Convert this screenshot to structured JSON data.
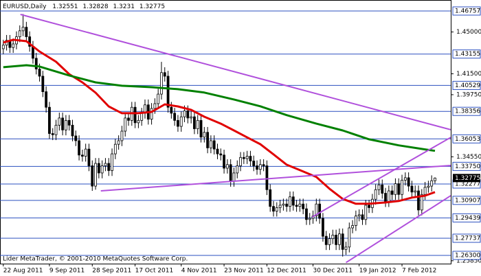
{
  "chart_data": {
    "type": "candlestick",
    "title": "EURUSD,Daily",
    "watermark": "Lider MetaTrader, © 2001-2010 MetaQuotes Software Corp.",
    "categories": [
      "22 Aug 2011",
      null,
      null,
      null,
      null,
      null,
      null,
      null,
      null,
      null,
      null,
      null,
      null,
      null,
      "9 Sep 2011",
      null,
      null,
      null,
      null,
      null,
      null,
      null,
      null,
      null,
      null,
      null,
      null,
      "28 Sep 2011",
      null,
      null,
      null,
      null,
      null,
      null,
      null,
      null,
      null,
      null,
      null,
      null,
      "17 Oct 2011",
      null,
      null,
      null,
      null,
      null,
      null,
      null,
      null,
      null,
      null,
      null,
      null,
      null,
      "4 Nov 2011",
      null,
      null,
      null,
      null,
      null,
      null,
      null,
      null,
      null,
      null,
      null,
      null,
      "23 Nov 2011",
      null,
      null,
      null,
      null,
      null,
      null,
      null,
      null,
      null,
      null,
      null,
      null,
      "12 Dec 2011",
      null,
      null,
      null,
      null,
      null,
      null,
      null,
      null,
      null,
      null,
      null,
      null,
      null,
      "30 Dec 2011",
      null,
      null,
      null,
      null,
      null,
      null,
      null,
      null,
      null,
      null,
      null,
      null,
      null,
      "19 Jan 2012",
      null,
      null,
      null,
      null,
      null,
      null,
      null,
      null,
      null,
      null,
      null,
      null,
      "7 Feb 2012",
      null,
      null,
      null,
      null,
      null,
      null,
      null,
      null,
      null,
      null
    ],
    "open": [
      1.436,
      1.439,
      1.443,
      1.437,
      1.44,
      1.446,
      1.451,
      1.454,
      1.446,
      1.438,
      1.428,
      1.419,
      1.413,
      1.4,
      1.387,
      1.365,
      1.364,
      1.372,
      1.378,
      1.368,
      1.376,
      1.372,
      1.363,
      1.359,
      1.347,
      1.346,
      1.352,
      1.338,
      1.321,
      1.34,
      1.332,
      1.338,
      1.34,
      1.334,
      1.348,
      1.356,
      1.359,
      1.367,
      1.378,
      1.376,
      1.387,
      1.374,
      1.376,
      1.382,
      1.389,
      1.377,
      1.386,
      1.39,
      1.398,
      1.416,
      1.413,
      1.387,
      1.382,
      1.376,
      1.371,
      1.379,
      1.384,
      1.378,
      1.379,
      1.369,
      1.376,
      1.362,
      1.366,
      1.353,
      1.359,
      1.352,
      1.348,
      1.347,
      1.336,
      1.339,
      1.325,
      1.332,
      1.338,
      1.345,
      1.344,
      1.346,
      1.342,
      1.338,
      1.335,
      1.339,
      1.338,
      1.318,
      1.304,
      1.3,
      1.303,
      1.305,
      1.306,
      1.304,
      1.312,
      1.305,
      1.304,
      1.306,
      1.302,
      1.293,
      1.294,
      1.296,
      1.306,
      1.294,
      1.279,
      1.272,
      1.277,
      1.28,
      1.272,
      1.281,
      1.268,
      1.27,
      1.286,
      1.288,
      1.296,
      1.297,
      1.293,
      1.305,
      1.303,
      1.31,
      1.318,
      1.322,
      1.315,
      1.308,
      1.317,
      1.314,
      1.323,
      1.314,
      1.326,
      1.328,
      1.321,
      1.316,
      1.317,
      1.301,
      1.314,
      1.32,
      1.321,
      1.32551
    ],
    "high": [
      1.4435,
      1.4475,
      1.4475,
      1.4445,
      1.4505,
      1.4555,
      1.465,
      1.4585,
      1.4505,
      1.4425,
      1.4325,
      1.4235,
      1.4175,
      1.4045,
      1.3915,
      1.3695,
      1.3765,
      1.3825,
      1.3825,
      1.3805,
      1.3805,
      1.3765,
      1.3675,
      1.3635,
      1.3515,
      1.3565,
      1.3565,
      1.3425,
      1.3445,
      1.3445,
      1.3425,
      1.3445,
      1.3445,
      1.3525,
      1.3605,
      1.3635,
      1.3715,
      1.3825,
      1.3825,
      1.3915,
      1.3915,
      1.3805,
      1.3865,
      1.3935,
      1.3935,
      1.3905,
      1.3945,
      1.4025,
      1.425,
      1.4205,
      1.4175,
      1.3915,
      1.3865,
      1.3805,
      1.3835,
      1.3885,
      1.3885,
      1.3835,
      1.3835,
      1.3805,
      1.3805,
      1.3705,
      1.3705,
      1.3635,
      1.3635,
      1.3565,
      1.3525,
      1.3515,
      1.3435,
      1.3435,
      1.3365,
      1.3425,
      1.3495,
      1.3495,
      1.3505,
      1.3505,
      1.3465,
      1.3425,
      1.3435,
      1.3435,
      1.3425,
      1.3225,
      1.3085,
      1.3075,
      1.3095,
      1.3105,
      1.3105,
      1.3165,
      1.3165,
      1.3095,
      1.3105,
      1.3105,
      1.3065,
      1.2985,
      1.3005,
      1.3105,
      1.3105,
      1.2985,
      1.2835,
      1.2815,
      1.2845,
      1.2845,
      1.2855,
      1.2855,
      1.2745,
      1.2905,
      1.2925,
      1.3005,
      1.3015,
      1.3015,
      1.3095,
      1.3095,
      1.3145,
      1.3225,
      1.3265,
      1.3265,
      1.3195,
      1.3215,
      1.3215,
      1.3275,
      1.3275,
      1.3305,
      1.3325,
      1.3325,
      1.3255,
      1.3215,
      1.3215,
      1.3185,
      1.3245,
      1.3255,
      1.33,
      1.32828
    ],
    "low": [
      1.4315,
      1.4345,
      1.4325,
      1.4325,
      1.4355,
      1.4415,
      1.4465,
      1.4415,
      1.4335,
      1.4235,
      1.4145,
      1.4085,
      1.3955,
      1.3825,
      1.3605,
      1.3595,
      1.3595,
      1.3675,
      1.3635,
      1.3635,
      1.3675,
      1.3585,
      1.3545,
      1.3425,
      1.3415,
      1.3415,
      1.3335,
      1.317,
      1.318,
      1.3275,
      1.3275,
      1.3335,
      1.3295,
      1.3295,
      1.3435,
      1.3515,
      1.3545,
      1.3625,
      1.3715,
      1.3715,
      1.3695,
      1.3695,
      1.3715,
      1.3775,
      1.3725,
      1.3725,
      1.3815,
      1.3855,
      1.3935,
      1.4085,
      1.3825,
      1.3775,
      1.3715,
      1.3665,
      1.3665,
      1.3745,
      1.3735,
      1.3735,
      1.3645,
      1.3645,
      1.3575,
      1.3575,
      1.3485,
      1.3485,
      1.3475,
      1.3435,
      1.3425,
      1.3315,
      1.3315,
      1.3205,
      1.3205,
      1.3275,
      1.3335,
      1.3395,
      1.3395,
      1.3375,
      1.3335,
      1.3305,
      1.3305,
      1.3335,
      1.3135,
      1.2995,
      1.2955,
      1.2955,
      1.2985,
      1.3005,
      1.2995,
      1.2995,
      1.3005,
      1.2995,
      1.2995,
      1.2975,
      1.2885,
      1.2885,
      1.2895,
      1.2915,
      1.2895,
      1.2745,
      1.2675,
      1.2675,
      1.2725,
      1.2675,
      1.2675,
      1.262,
      1.2635,
      1.2655,
      1.2815,
      1.2835,
      1.2915,
      1.2885,
      1.2885,
      1.2985,
      1.2985,
      1.3055,
      1.3135,
      1.3105,
      1.3035,
      1.3035,
      1.3095,
      1.3095,
      1.3095,
      1.3095,
      1.3215,
      1.3165,
      1.3115,
      1.3115,
      1.2965,
      1.2965,
      1.3095,
      1.3155,
      1.3165,
      1.3231
    ],
    "close": [
      1.439,
      1.443,
      1.437,
      1.44,
      1.446,
      1.451,
      1.454,
      1.446,
      1.438,
      1.428,
      1.419,
      1.413,
      1.4,
      1.387,
      1.365,
      1.364,
      1.372,
      1.378,
      1.368,
      1.376,
      1.372,
      1.363,
      1.359,
      1.347,
      1.346,
      1.352,
      1.338,
      1.321,
      1.34,
      1.332,
      1.338,
      1.34,
      1.334,
      1.348,
      1.356,
      1.359,
      1.367,
      1.378,
      1.376,
      1.387,
      1.374,
      1.376,
      1.382,
      1.389,
      1.377,
      1.386,
      1.39,
      1.398,
      1.416,
      1.413,
      1.387,
      1.382,
      1.376,
      1.371,
      1.379,
      1.384,
      1.378,
      1.379,
      1.369,
      1.376,
      1.362,
      1.366,
      1.353,
      1.359,
      1.352,
      1.348,
      1.347,
      1.336,
      1.339,
      1.325,
      1.332,
      1.338,
      1.345,
      1.344,
      1.346,
      1.342,
      1.338,
      1.335,
      1.339,
      1.338,
      1.318,
      1.304,
      1.3,
      1.303,
      1.305,
      1.306,
      1.304,
      1.312,
      1.305,
      1.304,
      1.306,
      1.302,
      1.293,
      1.294,
      1.296,
      1.306,
      1.294,
      1.279,
      1.272,
      1.277,
      1.28,
      1.272,
      1.281,
      1.268,
      1.27,
      1.286,
      1.288,
      1.296,
      1.297,
      1.293,
      1.305,
      1.303,
      1.31,
      1.318,
      1.322,
      1.315,
      1.308,
      1.317,
      1.314,
      1.323,
      1.314,
      1.326,
      1.328,
      1.321,
      1.316,
      1.317,
      1.301,
      1.314,
      1.32,
      1.321,
      1.3255,
      1.32775
    ],
    "bull_color": "#ffffff",
    "bear_color": "#000000",
    "series": [
      {
        "color": "#e00000",
        "x": [
          0,
          3,
          7,
          11,
          16,
          20,
          24,
          28,
          32,
          36,
          41,
          45,
          49,
          53,
          57,
          61,
          66,
          70,
          74,
          78,
          82,
          86,
          91,
          95,
          99,
          103,
          107,
          111,
          116,
          120,
          124,
          128,
          131
        ],
        "values": [
          1.4412,
          1.4435,
          1.4423,
          1.4337,
          1.4251,
          1.4147,
          1.4078,
          1.3992,
          1.3877,
          1.382,
          1.382,
          1.3831,
          1.3894,
          1.3877,
          1.3848,
          1.3791,
          1.3733,
          1.3676,
          1.3618,
          1.3561,
          1.3476,
          1.3389,
          1.3332,
          1.3286,
          1.3188,
          1.3103,
          1.3062,
          1.3062,
          1.3073,
          1.3085,
          1.3114,
          1.313,
          1.316
        ]
      },
      {
        "color": "#008000",
        "x": [
          0,
          7,
          11,
          20,
          28,
          36,
          45,
          53,
          61,
          70,
          78,
          86,
          95,
          103,
          111,
          120,
          128,
          131
        ],
        "values": [
          1.4205,
          1.4222,
          1.4211,
          1.4136,
          1.4078,
          1.405,
          1.4038,
          1.4021,
          1.3993,
          1.3935,
          1.3878,
          1.3804,
          1.3733,
          1.3676,
          1.3602,
          1.3551,
          1.3517,
          1.3505
        ]
      }
    ],
    "trendline_color": "#b050dc",
    "trendlines": [
      {
        "x": [
          5.2,
          135.8
        ],
        "y": [
          1.4647,
          1.3682
        ]
      },
      {
        "x": [
          29.6,
          135.8
        ],
        "y": [
          1.317,
          1.3383
        ]
      },
      {
        "x": [
          93.75,
          135.8
        ],
        "y": [
          1.2952,
          1.3618
        ]
      },
      {
        "x": [
          104,
          135.8
        ],
        "y": [
          1.257,
          1.313
        ]
      }
    ],
    "level_color": "#2a4fbf",
    "levels": [
      1.46757,
      1.43155,
      1.40529,
      1.38356,
      1.36053,
      {
        "value": 1.3375,
        "label": "1.33750"
      },
      1.32277,
      1.30907,
      1.29439,
      1.27737,
      {
        "value": 1.263,
        "label": "1.26300"
      }
    ],
    "xlim": [
      -1,
      135.8
    ],
    "ylim": [
      1.2561,
      1.4739
    ],
    "yticks": [
      {
        "value": 1.45,
        "label": "1.45000"
      },
      {
        "value": 1.415,
        "label": "1.41500"
      },
      {
        "value": 1.3975,
        "label": "1.39750"
      },
      {
        "value": 1.3455,
        "label": "1.34550"
      },
      {
        "value": 1.2585,
        "label": "1.25850"
      }
    ]
  }
}
